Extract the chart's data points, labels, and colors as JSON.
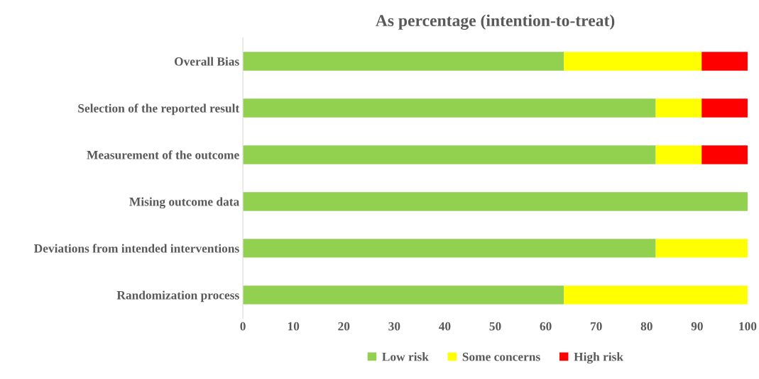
{
  "chart_data": {
    "type": "bar",
    "title": "As percentage (intention-to-treat)",
    "orientation": "horizontal",
    "stacked": true,
    "categories": [
      "Overall Bias",
      "Selection of the reported result",
      "Measurement of the outcome",
      "Mising outcome data",
      "Deviations from intended interventions",
      "Randomization process"
    ],
    "series": [
      {
        "name": "Low risk",
        "color": "#92d050",
        "values": [
          63.6,
          81.8,
          81.8,
          100,
          81.8,
          63.6
        ]
      },
      {
        "name": "Some concerns",
        "color": "#ffff00",
        "values": [
          27.3,
          9.1,
          9.1,
          null,
          18.2,
          36.4
        ]
      },
      {
        "name": "High risk",
        "color": "#ff0000",
        "values": [
          9.1,
          9.1,
          9.1,
          null,
          null,
          null
        ]
      }
    ],
    "xlim": [
      0,
      100
    ],
    "xticks": [
      0,
      10,
      20,
      30,
      40,
      50,
      60,
      70,
      80,
      90,
      100
    ],
    "grid": false,
    "legend": "bottom"
  }
}
